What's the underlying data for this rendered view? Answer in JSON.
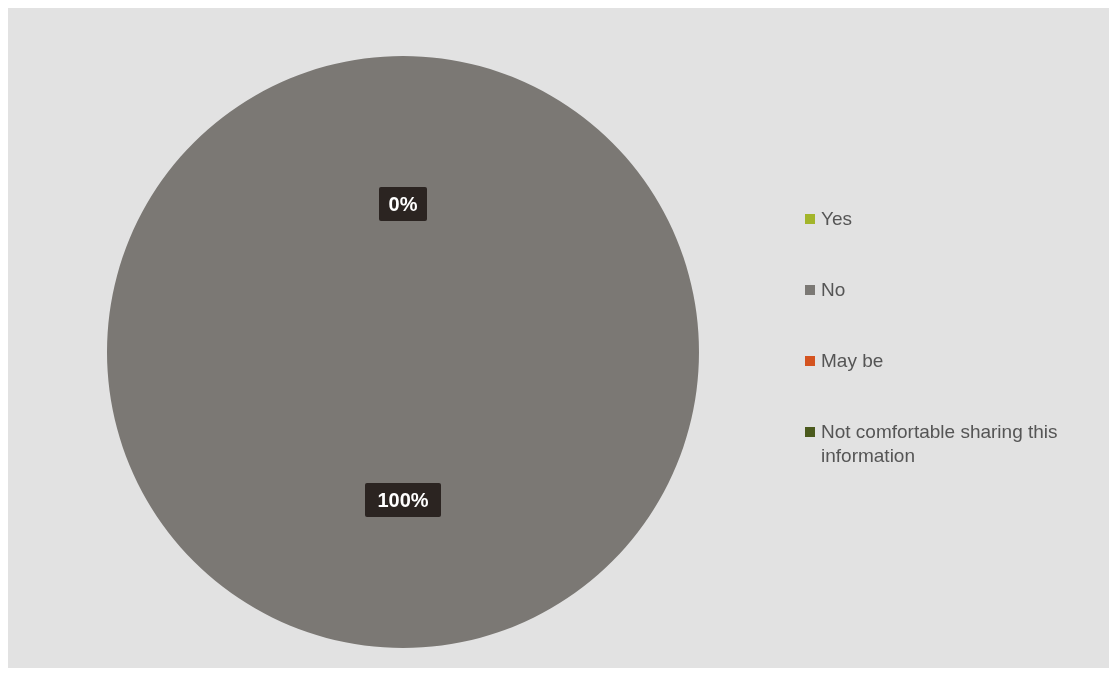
{
  "chart_data": {
    "type": "pie",
    "categories": [
      "Yes",
      "No",
      "May be",
      "Not comfortable sharing this information"
    ],
    "values": [
      0,
      100,
      0,
      0
    ],
    "colors": [
      "#a3b52a",
      "#7b7874",
      "#d4531f",
      "#4b5a1d"
    ],
    "value_labels": [
      "0%",
      "100%",
      null,
      null
    ],
    "legend": "right"
  }
}
